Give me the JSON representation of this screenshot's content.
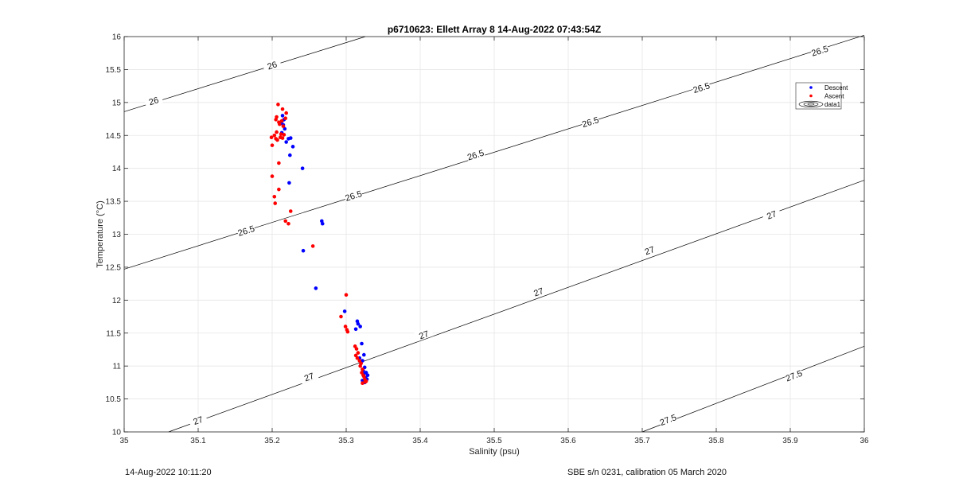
{
  "chart_data": {
    "type": "scatter",
    "title": "p6710623: Ellett Array 8 14-Aug-2022 07:43:54Z",
    "xlabel": "Salinity (psu)",
    "ylabel": "Temperature (°C)",
    "xlim": [
      35,
      36
    ],
    "ylim": [
      10,
      16
    ],
    "xticks": [
      "35",
      "35.1",
      "35.2",
      "35.3",
      "35.4",
      "35.5",
      "35.6",
      "35.7",
      "35.8",
      "35.9",
      "36"
    ],
    "yticks": [
      "10",
      "10.5",
      "11",
      "11.5",
      "12",
      "12.5",
      "13",
      "13.5",
      "14",
      "14.5",
      "15",
      "15.5",
      "16"
    ],
    "grid": true,
    "legend_position": "top-right",
    "contours": [
      {
        "level": "26",
        "line": [
          [
            35.0,
            14.86
          ],
          [
            35.326,
            16.0
          ]
        ],
        "labels": [
          [
            35.04,
            15.02
          ],
          [
            35.2,
            15.56
          ]
        ]
      },
      {
        "level": "26.5",
        "line": [
          [
            35.0,
            12.47
          ],
          [
            36.0,
            16.02
          ]
        ],
        "labels": [
          [
            35.165,
            13.05
          ],
          [
            35.31,
            13.58
          ],
          [
            35.475,
            14.2
          ],
          [
            35.63,
            14.7
          ],
          [
            35.78,
            15.22
          ],
          [
            35.94,
            15.78
          ]
        ]
      },
      {
        "level": "27",
        "line": [
          [
            35.06,
            10.0
          ],
          [
            36.0,
            13.82
          ]
        ],
        "labels": [
          [
            35.1,
            10.17
          ],
          [
            35.25,
            10.83
          ],
          [
            35.405,
            11.47
          ],
          [
            35.56,
            12.12
          ],
          [
            35.71,
            12.75
          ],
          [
            35.875,
            13.29
          ]
        ]
      },
      {
        "level": "27.5",
        "line": [
          [
            35.7,
            10.0
          ],
          [
            36.0,
            11.3
          ]
        ],
        "labels": [
          [
            35.735,
            10.18
          ],
          [
            35.905,
            10.85
          ]
        ]
      }
    ],
    "series": [
      {
        "name": "Descent",
        "color": "#0000ff",
        "x": [
          35.214,
          35.216,
          35.213,
          35.211,
          35.215,
          35.217,
          35.213,
          35.222,
          35.225,
          35.219,
          35.228,
          35.224,
          35.241,
          35.223,
          35.267,
          35.268,
          35.242,
          35.259,
          35.298,
          35.315,
          35.316,
          35.319,
          35.313,
          35.321,
          35.324,
          35.318,
          35.322,
          35.32,
          35.325,
          35.323,
          35.324,
          35.327,
          35.329,
          35.326,
          35.322,
          35.325,
          35.328
        ],
        "y": [
          14.8,
          14.74,
          14.71,
          14.68,
          14.66,
          14.6,
          14.54,
          14.45,
          14.46,
          14.4,
          14.33,
          14.2,
          14.0,
          13.78,
          13.2,
          13.16,
          12.75,
          12.18,
          11.83,
          11.68,
          11.64,
          11.6,
          11.56,
          11.34,
          11.17,
          11.12,
          11.08,
          11.04,
          10.98,
          10.93,
          10.88,
          10.9,
          10.86,
          10.82,
          10.78,
          10.75,
          10.8
        ]
      },
      {
        "name": "Ascent",
        "color": "#ff0000",
        "x": [
          35.208,
          35.214,
          35.219,
          35.206,
          35.218,
          35.205,
          35.213,
          35.209,
          35.21,
          35.215,
          35.206,
          35.212,
          35.216,
          35.203,
          35.199,
          35.211,
          35.214,
          35.205,
          35.207,
          35.2,
          35.2,
          35.209,
          35.203,
          35.209,
          35.204,
          35.225,
          35.218,
          35.222,
          35.255,
          35.3,
          35.293,
          35.299,
          35.301,
          35.302,
          35.312,
          35.314,
          35.313,
          35.315,
          35.316,
          35.318,
          35.32,
          35.319,
          35.322,
          35.321,
          35.323,
          35.324,
          35.325,
          35.327,
          35.326,
          35.322
        ],
        "y": [
          14.97,
          14.9,
          14.84,
          14.78,
          14.76,
          14.74,
          14.72,
          14.7,
          14.67,
          14.64,
          14.55,
          14.52,
          14.51,
          14.5,
          14.47,
          14.47,
          14.46,
          14.45,
          14.43,
          14.35,
          13.88,
          14.08,
          13.57,
          13.68,
          13.47,
          13.35,
          13.2,
          13.16,
          12.82,
          12.08,
          11.75,
          11.6,
          11.55,
          11.52,
          11.3,
          11.26,
          11.16,
          11.12,
          11.2,
          11.08,
          11.04,
          11.0,
          10.95,
          10.9,
          10.86,
          10.84,
          10.8,
          10.77,
          10.76,
          10.74
        ]
      }
    ],
    "legend_entries": [
      "Descent",
      "Ascent",
      "data1"
    ]
  },
  "footer": {
    "timestamp": "14-Aug-2022 10:11:20",
    "calibration": "SBE s/n 0231, calibration 05 March 2020"
  }
}
